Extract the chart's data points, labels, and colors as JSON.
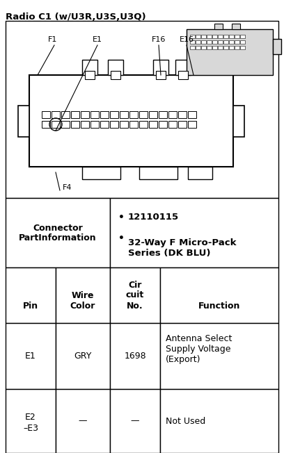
{
  "title": "Radio C1 (w/U3R,U3S,U3Q)",
  "title_fontsize": 9.5,
  "bg_color": "#ffffff",
  "connector_label_line1": "Connector",
  "connector_label_line2": "PartInformation",
  "connector_info_bullet1": "12110115",
  "connector_info_bullet2": "32-Way F Micro-Pack\nSeries (DK BLU)",
  "table_headers": [
    "Pin",
    "Wire\nColor",
    "Cir\ncuit\nNo.",
    "Function"
  ],
  "table_rows": [
    [
      "E1",
      "GRY",
      "1698",
      "Antenna Select\nSupply Voltage\n(Export)"
    ],
    [
      "E2\n–E3",
      "—",
      "—",
      "Not Used"
    ]
  ],
  "fig_width": 4.08,
  "fig_height": 6.52,
  "dpi": 100
}
